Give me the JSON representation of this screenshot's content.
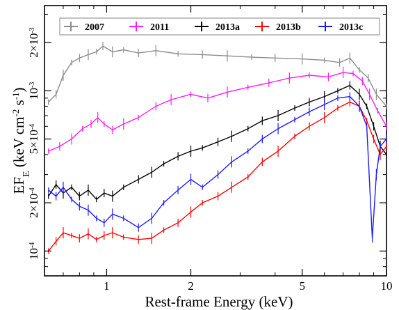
{
  "chart_data": {
    "type": "line",
    "xscale": "log",
    "yscale": "log",
    "xlim": [
      0.6,
      10
    ],
    "ylim": [
      7e-05,
      0.0034
    ],
    "xlabel": "Rest-frame Energy (keV)",
    "ylabel": {
      "base": "EF",
      "sub": "E",
      "unit_open": " (keV cm",
      "exp1": "-2",
      "unit_mid": " s",
      "exp2": "-1",
      "unit_close": ")"
    },
    "x_ticks": [
      {
        "value": 1,
        "label": "1"
      },
      {
        "value": 2,
        "label": "2"
      },
      {
        "value": 5,
        "label": "5"
      },
      {
        "value": 10,
        "label": "10"
      }
    ],
    "y_ticks": [
      {
        "value": 0.0001,
        "mant": "10",
        "exp": "-4"
      },
      {
        "value": 0.0002,
        "mant": "2×10",
        "exp": "-4"
      },
      {
        "value": 0.0005,
        "mant": "5×10",
        "exp": "-4"
      },
      {
        "value": 0.001,
        "mant": "10",
        "exp": "-3"
      },
      {
        "value": 0.002,
        "mant": "2×10",
        "exp": "-3"
      }
    ],
    "legend_position": "top",
    "series": [
      {
        "name": "2007",
        "color": "#8c8c8c",
        "x": [
          0.62,
          0.66,
          0.7,
          0.75,
          0.8,
          0.86,
          0.92,
          0.97,
          1.05,
          1.15,
          1.3,
          1.5,
          1.8,
          2.2,
          2.7,
          3.3,
          4.0,
          5.0,
          6.0,
          6.8,
          7.4,
          8.0,
          8.6,
          9.2,
          10.0
        ],
        "y": [
          0.00085,
          0.00095,
          0.00125,
          0.0015,
          0.0016,
          0.00168,
          0.00175,
          0.0019,
          0.00175,
          0.0018,
          0.00172,
          0.00178,
          0.0017,
          0.00168,
          0.00165,
          0.00162,
          0.0016,
          0.00158,
          0.00155,
          0.0015,
          0.0016,
          0.00135,
          0.0012,
          0.00095,
          0.0008
        ]
      },
      {
        "name": "2011",
        "color": "#ff1aff",
        "x": [
          0.62,
          0.68,
          0.75,
          0.82,
          0.88,
          0.93,
          0.98,
          1.05,
          1.15,
          1.3,
          1.5,
          1.7,
          2.0,
          2.3,
          2.7,
          3.2,
          3.8,
          4.5,
          5.3,
          6.2,
          7.0,
          7.6,
          8.2,
          8.7,
          9.3,
          10.0
        ],
        "y": [
          0.00042,
          0.00045,
          0.0005,
          0.00058,
          0.00062,
          0.00068,
          0.00062,
          0.00057,
          0.00062,
          0.00068,
          0.0008,
          0.00088,
          0.00095,
          0.0009,
          0.00098,
          0.00105,
          0.00112,
          0.0012,
          0.00125,
          0.00122,
          0.0013,
          0.00128,
          0.00115,
          0.00095,
          0.00075,
          0.0006
        ]
      },
      {
        "name": "2013a",
        "color": "#000000",
        "x": [
          0.62,
          0.66,
          0.7,
          0.75,
          0.8,
          0.86,
          0.92,
          0.98,
          1.05,
          1.15,
          1.3,
          1.45,
          1.6,
          1.8,
          2.0,
          2.2,
          2.5,
          2.8,
          3.2,
          3.6,
          4.1,
          4.7,
          5.3,
          6.0,
          6.7,
          7.4,
          8.0,
          8.5,
          9.0,
          9.5,
          10.0
        ],
        "y": [
          0.00022,
          0.00026,
          0.00023,
          0.00025,
          0.00022,
          0.00024,
          0.00021,
          0.00023,
          0.00022,
          0.00025,
          0.00028,
          0.00031,
          0.00035,
          0.00039,
          0.00042,
          0.00044,
          0.00048,
          0.00052,
          0.00058,
          0.00065,
          0.0007,
          0.00078,
          0.00085,
          0.00092,
          0.001,
          0.00108,
          0.00095,
          0.0008,
          0.0006,
          0.00045,
          0.0004
        ]
      },
      {
        "name": "2013b",
        "color": "#ff0000",
        "x": [
          0.62,
          0.66,
          0.7,
          0.75,
          0.8,
          0.86,
          0.92,
          0.98,
          1.05,
          1.15,
          1.3,
          1.45,
          1.6,
          1.8,
          2.0,
          2.2,
          2.5,
          2.8,
          3.2,
          3.6,
          4.1,
          4.7,
          5.3,
          6.0,
          6.7,
          7.4,
          8.0,
          8.5,
          9.0,
          9.5,
          10.0
        ],
        "y": [
          0.0001,
          0.000115,
          0.00013,
          0.000125,
          0.00012,
          0.000128,
          0.000118,
          0.000125,
          0.00013,
          0.000122,
          0.000118,
          0.00012,
          0.000135,
          0.00015,
          0.000175,
          0.0002,
          0.00022,
          0.00025,
          0.00029,
          0.00036,
          0.00042,
          0.00052,
          0.0006,
          0.00068,
          0.00078,
          0.00085,
          0.0008,
          0.00065,
          0.0005,
          0.0004,
          0.00045
        ]
      },
      {
        "name": "2013c",
        "color": "#1a1aff",
        "x": [
          0.62,
          0.66,
          0.7,
          0.75,
          0.8,
          0.86,
          0.92,
          0.98,
          1.05,
          1.15,
          1.3,
          1.45,
          1.6,
          1.8,
          2.0,
          2.2,
          2.5,
          2.8,
          3.2,
          3.6,
          4.1,
          4.7,
          5.3,
          6.0,
          6.7,
          7.4,
          8.0,
          8.5,
          8.9,
          9.2,
          9.5,
          10.0
        ],
        "y": [
          0.00024,
          0.00022,
          0.00025,
          0.00021,
          0.00019,
          0.00018,
          0.00016,
          0.00015,
          0.00017,
          0.00016,
          0.00014,
          0.00016,
          0.0002,
          0.00024,
          0.00028,
          0.00025,
          0.0003,
          0.00036,
          0.00042,
          0.0005,
          0.00058,
          0.00066,
          0.00074,
          0.00082,
          0.0009,
          0.00092,
          0.0008,
          0.0006,
          0.00012,
          0.0003,
          0.00045,
          0.0005
        ]
      }
    ]
  }
}
